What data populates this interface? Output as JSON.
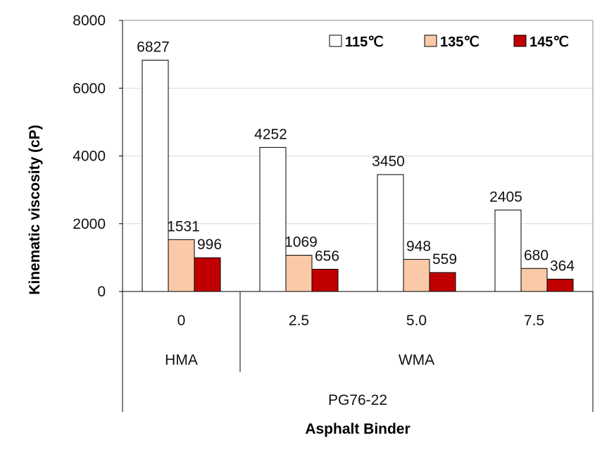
{
  "chart_data": {
    "type": "bar",
    "title": "",
    "ylabel": "Kinematic viscosity (cP)",
    "xlabel": "Asphalt Binder",
    "ylim": [
      0,
      8000
    ],
    "yticks": [
      0,
      2000,
      4000,
      6000,
      8000
    ],
    "grid": true,
    "legend_position": "top-right",
    "categories": [
      "0",
      "2.5",
      "5.0",
      "7.5"
    ],
    "category_groups": [
      {
        "label": "HMA",
        "span": 1
      },
      {
        "label": "WMA",
        "span": 3
      }
    ],
    "outer_group": "PG76-22",
    "series": [
      {
        "name": "115℃",
        "color": "#ffffff",
        "values": [
          6827,
          4252,
          3450,
          2405
        ]
      },
      {
        "name": "135℃",
        "color": "#fac9a8",
        "values": [
          1531,
          1069,
          948,
          680
        ]
      },
      {
        "name": "145℃",
        "color": "#c00000",
        "values": [
          996,
          656,
          559,
          364
        ]
      }
    ]
  }
}
